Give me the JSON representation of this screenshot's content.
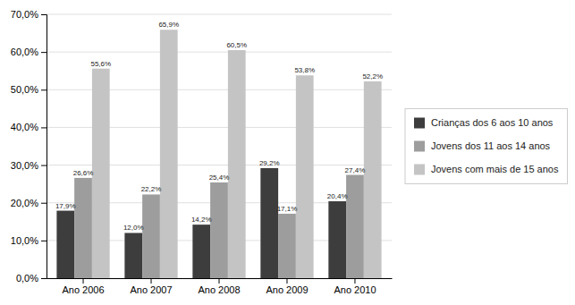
{
  "chart_data": {
    "type": "bar",
    "categories": [
      "Ano 2006",
      "Ano 2007",
      "Ano 2008",
      "Ano 2009",
      "Ano 2010"
    ],
    "series": [
      {
        "name": "Crianças dos 6 aos 10 anos",
        "color": "#3d3d3d",
        "values": [
          17.9,
          12.0,
          14.2,
          29.2,
          20.4
        ],
        "value_labels": [
          "17,9%",
          "12,0%",
          "14,2%",
          "29,2%",
          "20,4%"
        ]
      },
      {
        "name": "Jovens dos 11 aos 14 anos",
        "color": "#9d9d9d",
        "values": [
          26.6,
          22.2,
          25.4,
          17.1,
          27.4
        ],
        "value_labels": [
          "26,6%",
          "22,2%",
          "25,4%",
          "17,1%",
          "27,4%"
        ]
      },
      {
        "name": "Jovens com mais de 15 anos",
        "color": "#c4c4c4",
        "values": [
          55.6,
          65.9,
          60.5,
          53.8,
          52.2
        ],
        "value_labels": [
          "55,6%",
          "65,9%",
          "60,5%",
          "53,8%",
          "52,2%"
        ]
      }
    ],
    "ylim": [
      0,
      70
    ],
    "yticks": [
      {
        "value": 0,
        "label": "0,0%"
      },
      {
        "value": 10,
        "label": "10,0%"
      },
      {
        "value": 20,
        "label": "20,0%"
      },
      {
        "value": 30,
        "label": "30,0%"
      },
      {
        "value": 40,
        "label": "40,0%"
      },
      {
        "value": 50,
        "label": "50,0%"
      },
      {
        "value": 60,
        "label": "60,0%"
      },
      {
        "value": 70,
        "label": "70,0%"
      }
    ],
    "grid": true,
    "legend": "right",
    "data_labels": true
  }
}
